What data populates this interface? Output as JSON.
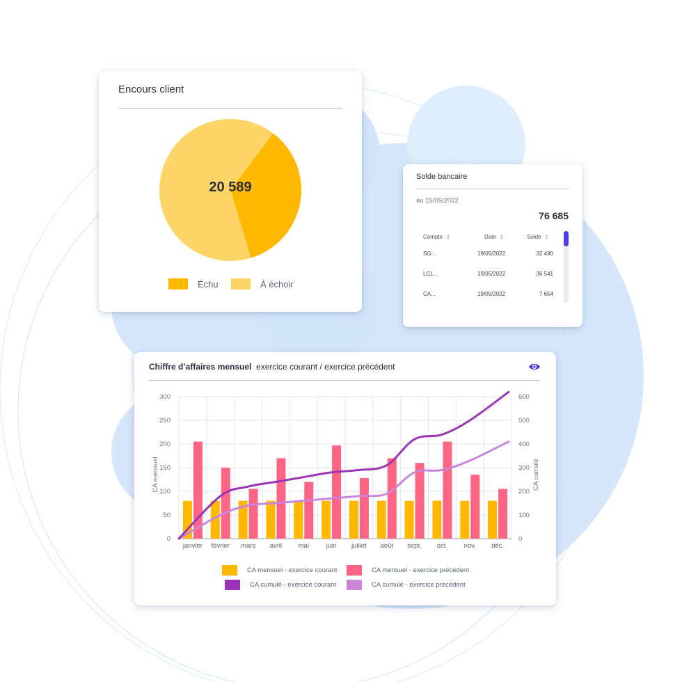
{
  "colors": {
    "echu": "#FFB800",
    "a_echoir": "#FDD466",
    "ca_courant": "#FFB800",
    "ca_precedent": "#FF6484",
    "cumul_courant": "#9B34B7",
    "cumul_precedent": "#C986D9",
    "accent": "#4B3FE3"
  },
  "encours": {
    "title": "Encours client",
    "total": "20 589",
    "legend": [
      {
        "label": "Échu",
        "color": "#FFB800"
      },
      {
        "label": "À échoir",
        "color": "#FDD466"
      }
    ]
  },
  "solde": {
    "title": "Solde bancaire",
    "date": "au 15/05/2022",
    "total": "76 685",
    "columns": [
      "Compte",
      "Date",
      "Solde"
    ],
    "rows": [
      {
        "compte": "SG...",
        "date": "19/05/2022",
        "solde": "32 490"
      },
      {
        "compte": "LCL...",
        "date": "19/05/2022",
        "solde": "36 541"
      },
      {
        "compte": "CA...",
        "date": "19/05/2022",
        "solde": "7 654"
      }
    ]
  },
  "ca": {
    "title_bold": "Chiffre d’affaires mensuel",
    "title_rest": "exercice courant / exercice précédent",
    "legend": [
      {
        "label": "CA mensuel - exercice courant",
        "color": "#FFB800"
      },
      {
        "label": "CA mensuel - exercice précédent",
        "color": "#FF6484"
      },
      {
        "label": "CA cumulé - exercice courant",
        "color": "#9B34B7"
      },
      {
        "label": "CA cumulé - exercice précédent",
        "color": "#C986D9"
      }
    ]
  },
  "chart_data": [
    {
      "type": "pie",
      "categories": [
        "Échu",
        "À échoir"
      ],
      "values": [
        35,
        65
      ],
      "total_label": "20 589"
    },
    {
      "type": "bar",
      "categories": [
        "janvier",
        "février",
        "mars",
        "avril",
        "mai",
        "juin",
        "juillet",
        "août",
        "sept.",
        "oct.",
        "nov.",
        "déc."
      ],
      "ylabel": "CA mensuel",
      "y2label": "CA cumulé",
      "ylim": [
        0,
        300
      ],
      "y2lim": [
        0,
        600
      ],
      "yticks": [
        0,
        50,
        100,
        150,
        200,
        250,
        300
      ],
      "y2ticks": [
        0,
        100,
        200,
        300,
        400,
        500,
        600
      ],
      "series": [
        {
          "name": "CA mensuel - exercice courant",
          "type": "bar",
          "axis": "left",
          "values": [
            80,
            80,
            80,
            80,
            80,
            80,
            80,
            80,
            80,
            80,
            80,
            80
          ]
        },
        {
          "name": "CA mensuel - exercice précédent",
          "type": "bar",
          "axis": "left",
          "values": [
            205,
            150,
            105,
            170,
            120,
            197,
            128,
            170,
            160,
            205,
            135,
            105
          ]
        },
        {
          "name": "CA cumulé - exercice courant",
          "type": "line",
          "axis": "right",
          "values": [
            0,
            180,
            220,
            240,
            260,
            280,
            290,
            310,
            420,
            440,
            500,
            620
          ]
        },
        {
          "name": "CA cumulé - exercice précédent",
          "type": "line",
          "axis": "right",
          "values": [
            0,
            100,
            140,
            150,
            160,
            170,
            180,
            190,
            280,
            290,
            330,
            410
          ]
        }
      ],
      "grid": true,
      "legend_position": "bottom"
    }
  ]
}
